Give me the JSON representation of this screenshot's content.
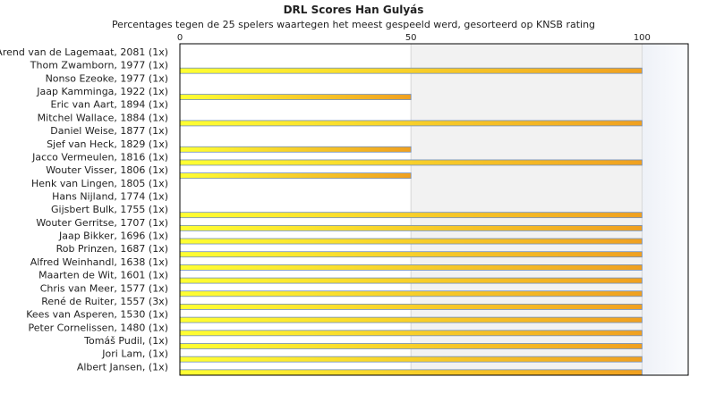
{
  "chart_data": {
    "type": "bar",
    "orientation": "horizontal",
    "title": "DRL Scores Han Gulyás",
    "subtitle": "Percentages tegen de 25 spelers waartegen het meest gespeeld werd, gesorteerd op KNSB rating",
    "xlabel": "",
    "ylabel": "",
    "xlim": [
      0,
      110
    ],
    "xticks": [
      0,
      50,
      100
    ],
    "grid": true,
    "legend": "none",
    "categories": [
      "Arend van de Lagemaat, 2081 (1x)",
      "Thom Zwamborn, 1977 (1x)",
      "Nonso Ezeoke, 1977 (1x)",
      "Jaap Kamminga, 1922 (1x)",
      "Eric van Aart, 1894 (1x)",
      "Mitchel Wallace, 1884 (1x)",
      "Daniel Weise, 1877 (1x)",
      "Sjef van Heck, 1829 (1x)",
      "Jacco Vermeulen, 1816 (1x)",
      "Wouter Visser, 1806 (1x)",
      "Henk van Lingen, 1805 (1x)",
      "Hans Nijland, 1774 (1x)",
      "Gijsbert Bulk, 1755 (1x)",
      "Wouter Gerritse, 1707 (1x)",
      "Jaap Bikker, 1696 (1x)",
      "Rob Prinzen, 1687 (1x)",
      "Alfred Weinhandl, 1638 (1x)",
      "Maarten de Wit, 1601 (1x)",
      "Chris van Meer, 1577 (1x)",
      "René de Ruiter, 1557 (3x)",
      "Kees van Asperen, 1530 (1x)",
      "Peter Cornelissen, 1480 (1x)",
      "Tomáš Pudil,  (1x)",
      "Jori Lam,  (1x)",
      "Albert Jansen,  (1x)"
    ],
    "values": [
      0,
      100,
      0,
      50,
      0,
      100,
      0,
      50,
      100,
      50,
      0,
      0,
      100,
      100,
      100,
      100,
      100,
      100,
      100,
      100,
      100,
      100,
      100,
      100,
      100
    ],
    "colors": {
      "bar_start": "#ffff33",
      "bar_end": "#f0a020",
      "bar_edge": "#6f8fbf",
      "band_light": "#f2f2f2",
      "band_end": "#f8f9fc",
      "frame": "#000000"
    }
  }
}
